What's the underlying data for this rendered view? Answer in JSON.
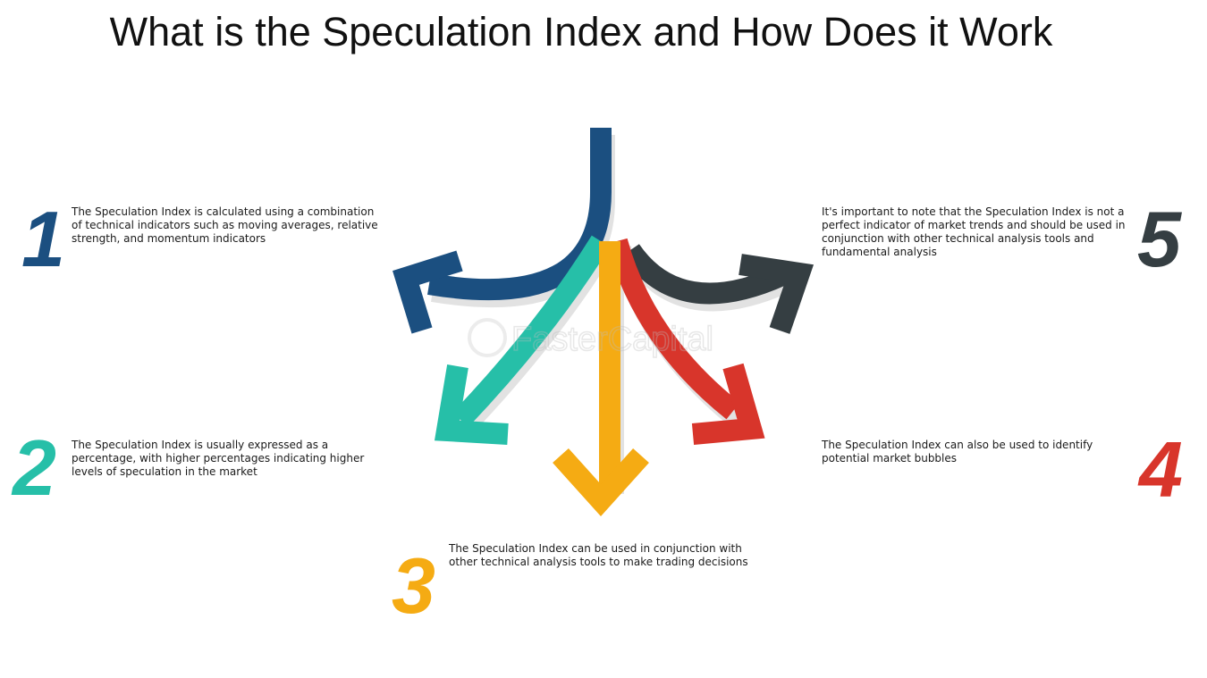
{
  "title": "What is the Speculation Index and How Does it Work",
  "watermark": "FasterCapital",
  "colors": {
    "step1": "#1b4f80",
    "step2": "#26bfa8",
    "step3": "#f5ab13",
    "step4": "#d8352b",
    "step5": "#353e42"
  },
  "steps": [
    {
      "number": "1",
      "text": "The Speculation Index is calculated using a combination of technical indicators such as moving averages, relative strength, and momentum indicators"
    },
    {
      "number": "2",
      "text": "The Speculation Index is usually expressed as a percentage, with higher percentages indicating higher levels of speculation in the market"
    },
    {
      "number": "3",
      "text": "The Speculation Index can be used in conjunction with other technical analysis tools to make trading decisions"
    },
    {
      "number": "4",
      "text": "The Speculation Index can also be used to identify potential market bubbles"
    },
    {
      "number": "5",
      "text": "It's important to note that the Speculation Index is not a perfect indicator of market trends and should be used in conjunction with other technical analysis tools and fundamental analysis"
    }
  ]
}
